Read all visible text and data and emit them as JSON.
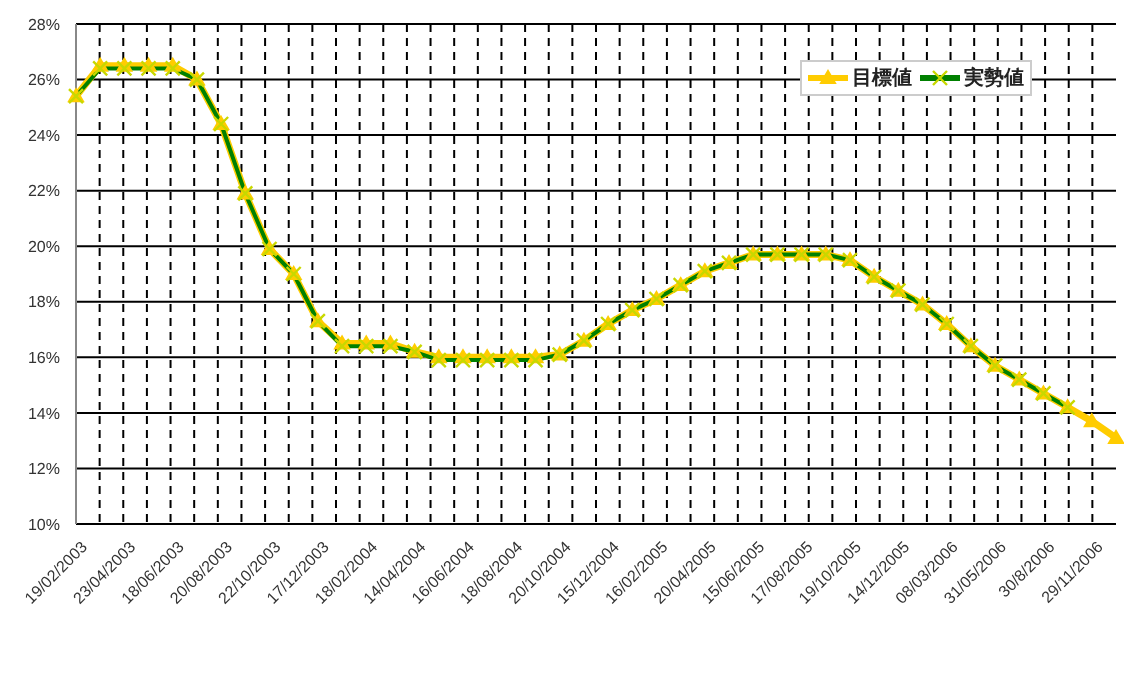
{
  "chart_data": {
    "type": "line",
    "categories": [
      "19/02/2003",
      null,
      "23/04/2003",
      null,
      "18/06/2003",
      null,
      "20/08/2003",
      null,
      "22/10/2003",
      null,
      "17/12/2003",
      null,
      "18/02/2004",
      null,
      "14/04/2004",
      null,
      "16/06/2004",
      null,
      "18/08/2004",
      null,
      "20/10/2004",
      null,
      "15/12/2004",
      null,
      "16/02/2005",
      null,
      "20/04/2005",
      null,
      "15/06/2005",
      null,
      "17/08/2005",
      null,
      "19/10/2005",
      null,
      "14/12/2005",
      null,
      "08/03/2006",
      null,
      "31/05/2006",
      null,
      "30/8/2006",
      null,
      "29/11/2006",
      null
    ],
    "series": [
      {
        "name": "目標値",
        "color": "#ffcc00",
        "marker": "triangle",
        "values": [
          25.4,
          26.5,
          26.5,
          26.5,
          26.5,
          26.0,
          24.4,
          21.9,
          19.9,
          19.0,
          17.3,
          16.5,
          16.5,
          16.5,
          16.2,
          16.0,
          16.0,
          16.0,
          16.0,
          16.0,
          16.1,
          16.6,
          17.2,
          17.7,
          18.1,
          18.6,
          19.1,
          19.4,
          19.7,
          19.7,
          19.7,
          19.7,
          19.5,
          18.9,
          18.4,
          17.9,
          17.2,
          16.4,
          15.7,
          15.2,
          14.7,
          14.2,
          13.7,
          13.1
        ]
      },
      {
        "name": "実勢値",
        "color": "#008000",
        "marker": "cross",
        "values": [
          25.4,
          26.4,
          26.4,
          26.4,
          26.4,
          26.0,
          24.4,
          21.9,
          19.9,
          19.0,
          17.3,
          16.4,
          16.4,
          16.4,
          16.2,
          15.9,
          15.9,
          15.9,
          15.9,
          15.9,
          16.1,
          16.6,
          17.2,
          17.7,
          18.1,
          18.6,
          19.1,
          19.4,
          19.7,
          19.7,
          19.7,
          19.7,
          19.5,
          18.9,
          18.4,
          17.9,
          17.2,
          16.4,
          15.7,
          15.2,
          14.7,
          14.2,
          null,
          null
        ]
      }
    ],
    "ylim": [
      10,
      28
    ],
    "yticks": [
      {
        "value": 10,
        "label": "10%"
      },
      {
        "value": 12,
        "label": "12%"
      },
      {
        "value": 14,
        "label": "14%"
      },
      {
        "value": 16,
        "label": "16%"
      },
      {
        "value": 18,
        "label": "18%"
      },
      {
        "value": 20,
        "label": "20%"
      },
      {
        "value": 22,
        "label": "22%"
      },
      {
        "value": 24,
        "label": "24%"
      },
      {
        "value": 26,
        "label": "26%"
      },
      {
        "value": 28,
        "label": "28%"
      }
    ],
    "grid": true,
    "legend": "top right",
    "line_style": "solid"
  }
}
